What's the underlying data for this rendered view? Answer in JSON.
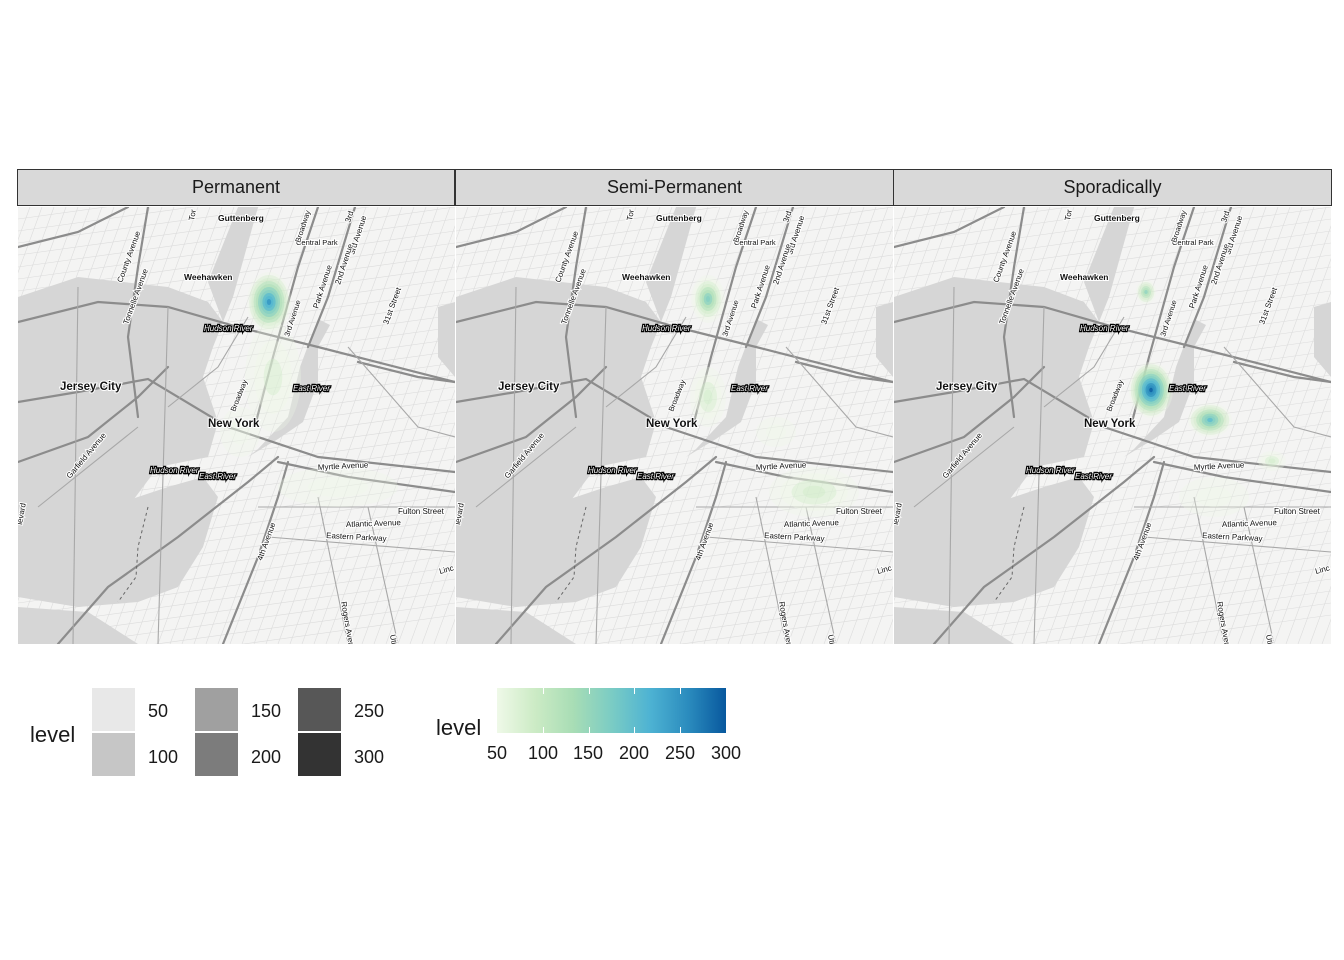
{
  "panels": [
    {
      "strip": "Permanent",
      "hotspots": [
        {
          "cx": 251,
          "cy": 95,
          "rx": 22,
          "ry": 30,
          "level": 260
        },
        {
          "cx": 255,
          "cy": 170,
          "rx": 28,
          "ry": 55,
          "level": 80
        },
        {
          "cx": 222,
          "cy": 225,
          "rx": 20,
          "ry": 25,
          "level": 60
        },
        {
          "cx": 320,
          "cy": 280,
          "rx": 60,
          "ry": 20,
          "level": 55
        }
      ]
    },
    {
      "strip": "Semi-Permanent",
      "hotspots": [
        {
          "cx": 252,
          "cy": 92,
          "rx": 17,
          "ry": 24,
          "level": 190
        },
        {
          "cx": 252,
          "cy": 190,
          "rx": 18,
          "ry": 30,
          "level": 90
        },
        {
          "cx": 358,
          "cy": 285,
          "rx": 45,
          "ry": 25,
          "level": 95
        },
        {
          "cx": 320,
          "cy": 225,
          "rx": 20,
          "ry": 15,
          "level": 55
        }
      ]
    },
    {
      "strip": "Sporadically",
      "hotspots": [
        {
          "cx": 257,
          "cy": 183,
          "rx": 22,
          "ry": 28,
          "level": 300
        },
        {
          "cx": 316,
          "cy": 213,
          "rx": 22,
          "ry": 17,
          "level": 210
        },
        {
          "cx": 252,
          "cy": 85,
          "rx": 10,
          "ry": 12,
          "level": 160
        },
        {
          "cx": 378,
          "cy": 254,
          "rx": 14,
          "ry": 10,
          "level": 110
        },
        {
          "cx": 320,
          "cy": 290,
          "rx": 35,
          "ry": 20,
          "level": 55
        }
      ]
    }
  ],
  "map_labels": [
    {
      "text": "Guttenberg",
      "bold": true
    },
    {
      "text": "Central Park",
      "bold": false
    },
    {
      "text": "Weehawken",
      "bold": true
    },
    {
      "text": "Hudson River",
      "bold": false,
      "boxed": true
    },
    {
      "text": "Jersey City",
      "bold": true
    },
    {
      "text": "New York",
      "bold": true
    },
    {
      "text": "East River",
      "bold": false,
      "boxed": true
    },
    {
      "text": "Hudson River",
      "bold": false,
      "boxed": true
    },
    {
      "text": "East River",
      "bold": false,
      "boxed": true
    },
    {
      "text": "Myrtle Avenue",
      "bold": false
    },
    {
      "text": "Fulton Street",
      "bold": false
    },
    {
      "text": "Atlantic Avenue",
      "bold": false
    },
    {
      "text": "Eastern Parkway",
      "bold": false
    },
    {
      "text": "County Avenue",
      "bold": false
    },
    {
      "text": "Tonnelle Avenue",
      "bold": false
    },
    {
      "text": "Garfield Avenue",
      "bold": false
    },
    {
      "text": "Broadway",
      "bold": false
    },
    {
      "text": "Park Avenue",
      "bold": false
    },
    {
      "text": "3rd Avenue",
      "bold": false
    },
    {
      "text": "2nd Avenue",
      "bold": false
    },
    {
      "text": "31st Street",
      "bold": false
    },
    {
      "text": "4th Avenue",
      "bold": false
    },
    {
      "text": "Rogers Avenue",
      "bold": false
    },
    {
      "text": "Utica Avenue",
      "bold": false
    },
    {
      "text": "Broadway",
      "bold": false
    },
    {
      "text": "3rd Avenue",
      "bold": false
    },
    {
      "text": "Linc",
      "bold": false
    },
    {
      "text": "levard",
      "bold": false
    },
    {
      "text": "Tor",
      "bold": false
    },
    {
      "text": "3rd",
      "bold": false
    }
  ],
  "legend_alpha": {
    "title": "level",
    "items": [
      {
        "label": "50",
        "color": "#e8e8e8"
      },
      {
        "label": "100",
        "color": "#c6c6c6"
      },
      {
        "label": "150",
        "color": "#a0a0a0"
      },
      {
        "label": "200",
        "color": "#7c7c7c"
      },
      {
        "label": "250",
        "color": "#575757"
      },
      {
        "label": "300",
        "color": "#333333"
      }
    ]
  },
  "legend_fill": {
    "title": "level",
    "min": 50,
    "max": 300,
    "ticks": [
      "50",
      "100",
      "150",
      "200",
      "250",
      "300"
    ],
    "colors": [
      "#eff9e8",
      "#ccebc5",
      "#a8ddb5",
      "#7bccc4",
      "#4eb3d3",
      "#2b8cbe",
      "#08589e"
    ]
  }
}
